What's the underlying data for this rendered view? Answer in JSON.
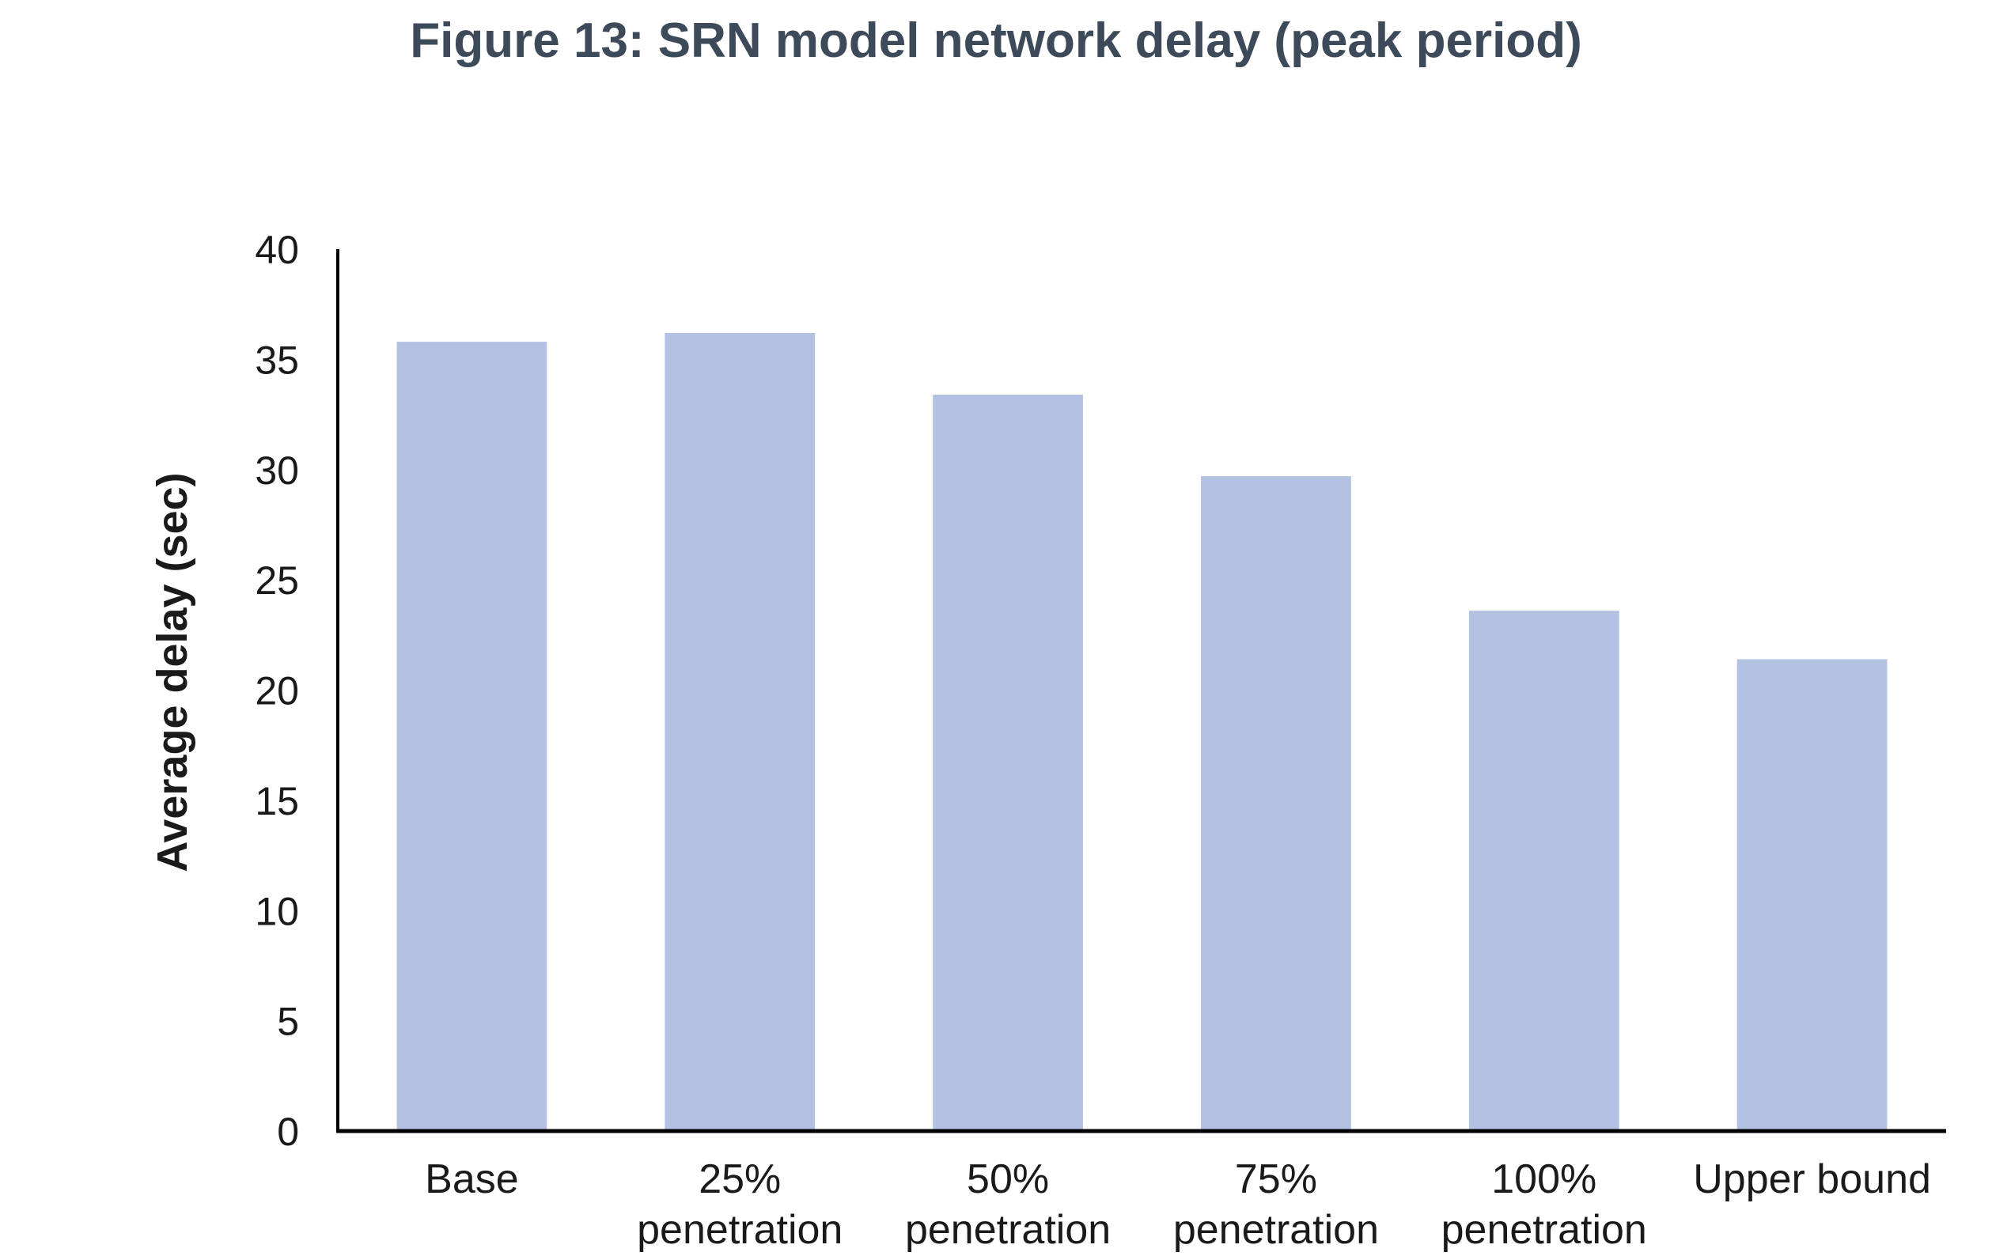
{
  "chart_data": {
    "type": "bar",
    "title": "Figure 13: SRN model network delay (peak period)",
    "xlabel": "",
    "ylabel": "Average delay (sec)",
    "categories": [
      [
        "Base"
      ],
      [
        "25%",
        "penetration"
      ],
      [
        "50%",
        "penetration"
      ],
      [
        "75%",
        "penetration"
      ],
      [
        "100%",
        "penetration"
      ],
      [
        "Upper bound"
      ]
    ],
    "values": [
      35.8,
      36.2,
      33.4,
      29.7,
      23.6,
      21.4
    ],
    "ylim": [
      0,
      40
    ],
    "yticks": [
      0,
      5,
      10,
      15,
      20,
      25,
      30,
      35,
      40
    ],
    "grid": false,
    "legend": "none",
    "bar_color": "#b3c2e3",
    "axis_color": "#000000"
  }
}
